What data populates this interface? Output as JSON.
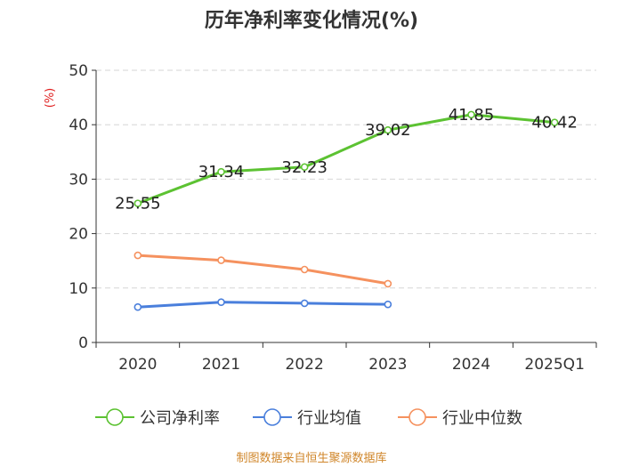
{
  "chart_data": {
    "type": "line",
    "title": "历年净利率变化情况(%)",
    "ylabel": "(%)",
    "xlabel": "",
    "categories": [
      "2020",
      "2021",
      "2022",
      "2023",
      "2024",
      "2025Q1"
    ],
    "ylim": [
      0,
      50
    ],
    "yticks": [
      0,
      10,
      20,
      30,
      40,
      50
    ],
    "grid": true,
    "legend_position": "bottom",
    "series": [
      {
        "name": "公司净利率",
        "color": "#5cc232",
        "values": [
          25.55,
          31.34,
          32.23,
          39.02,
          41.85,
          40.42
        ],
        "labels": [
          "25.55",
          "31.34",
          "32.23",
          "39.02",
          "41.85",
          "40.42"
        ]
      },
      {
        "name": "行业均值",
        "color": "#4a7fdc",
        "values": [
          6.5,
          7.4,
          7.2,
          7.0,
          null,
          null
        ]
      },
      {
        "name": "行业中位数",
        "color": "#f5915e",
        "values": [
          16.0,
          15.1,
          13.4,
          10.8,
          null,
          null
        ]
      }
    ]
  },
  "source": "制图数据来自恒生聚源数据库"
}
